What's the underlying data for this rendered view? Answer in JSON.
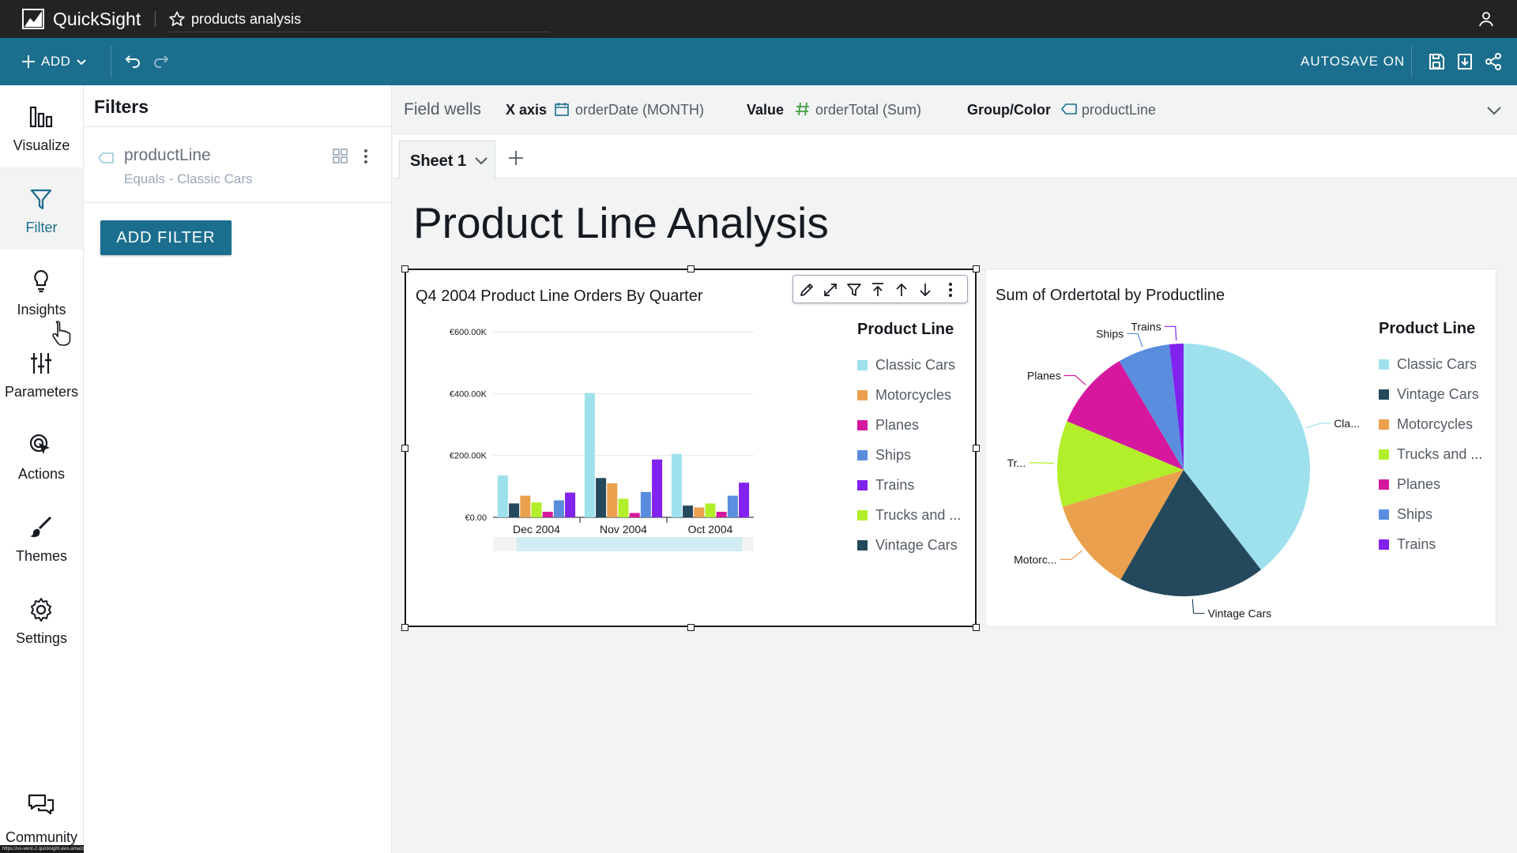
{
  "topbar": {
    "brand": "QuickSight",
    "analysis_name": "products analysis"
  },
  "toolbar": {
    "add_label": "ADD",
    "autosave": "AUTOSAVE ON"
  },
  "leftnav": {
    "items": [
      {
        "label": "Visualize",
        "icon": "bar-chart-icon"
      },
      {
        "label": "Filter",
        "icon": "filter-icon"
      },
      {
        "label": "Insights",
        "icon": "lightbulb-icon"
      },
      {
        "label": "Parameters",
        "icon": "sliders-icon"
      },
      {
        "label": "Actions",
        "icon": "pointer-icon"
      },
      {
        "label": "Themes",
        "icon": "brush-icon"
      },
      {
        "label": "Settings",
        "icon": "gear-icon"
      }
    ],
    "community": "Community",
    "status_url": "https://us-west-2.quicksight.aws.amazon.com/sn/analyses/c96b6112-5a88-4196-8c88-c7663ca49fc9#"
  },
  "filters": {
    "title": "Filters",
    "card": {
      "field": "productLine",
      "condition": "Equals - Classic Cars"
    },
    "add_label": "ADD FILTER"
  },
  "fieldwells": {
    "title": "Field wells",
    "x_label": "X axis",
    "x_value": "orderDate (MONTH)",
    "value_label": "Value",
    "value_value": "orderTotal (Sum)",
    "group_label": "Group/Color",
    "group_value": "productLine"
  },
  "sheet": {
    "tab": "Sheet 1",
    "title": "Product Line Analysis"
  },
  "colors": {
    "accent": "#1b6e8e",
    "Classic Cars": "#9ee1ec",
    "Motorcycles": "#eaa04d",
    "Vintage Cars": "#24495c",
    "Planes": "#d5189e",
    "Ships": "#5b8ddf",
    "Trains": "#8122ee",
    "Trucks and Buses": "#b2ee2a"
  },
  "bar_visual": {
    "title": "Q4 2004 Product Line Orders By Quarter",
    "legend_title": "Product Line",
    "legend": [
      "Classic Cars",
      "Motorcycles",
      "Planes",
      "Ships",
      "Trains",
      "Trucks and ...",
      "Vintage Cars"
    ]
  },
  "pie_visual": {
    "title": "Sum of Ordertotal by Productline",
    "legend_title": "Product Line",
    "legend": [
      "Classic Cars",
      "Vintage Cars",
      "Motorcycles",
      "Trucks and ...",
      "Planes",
      "Ships",
      "Trains"
    ]
  },
  "chart_data": [
    {
      "type": "bar",
      "title": "Q4 2004 Product Line Orders By Quarter",
      "categories": [
        "Dec 2004",
        "Nov 2004",
        "Oct 2004"
      ],
      "ylim": [
        0,
        600000
      ],
      "yticks": [
        "€0.00",
        "€200.00K",
        "€400.00K",
        "€600.00K"
      ],
      "legend_position": "right",
      "grid": true,
      "series": [
        {
          "name": "Classic Cars",
          "values": [
            135000,
            402000,
            205000
          ]
        },
        {
          "name": "Vintage Cars",
          "values": [
            45000,
            127000,
            38000
          ]
        },
        {
          "name": "Motorcycles",
          "values": [
            70000,
            110000,
            32000
          ]
        },
        {
          "name": "Trucks and Buses",
          "values": [
            48000,
            60000,
            45000
          ]
        },
        {
          "name": "Planes",
          "values": [
            18000,
            14000,
            18000
          ]
        },
        {
          "name": "Ships",
          "values": [
            55000,
            82000,
            70000
          ]
        },
        {
          "name": "Trains",
          "values": [
            80000,
            187000,
            112000
          ]
        }
      ]
    },
    {
      "type": "pie",
      "title": "Sum of Ordertotal by Productline",
      "legend_position": "right",
      "slices": [
        {
          "name": "Classic Cars",
          "label": "Cla...",
          "value": 39.5
        },
        {
          "name": "Vintage Cars",
          "label": "Vintage Cars",
          "value": 18.8
        },
        {
          "name": "Motorcycles",
          "label": "Motorc...",
          "value": 12.0
        },
        {
          "name": "Trucks and Buses",
          "label": "Tr...",
          "value": 11.0
        },
        {
          "name": "Planes",
          "label": "Planes",
          "value": 10.2
        },
        {
          "name": "Ships",
          "label": "Ships",
          "value": 6.7
        },
        {
          "name": "Trains",
          "label": "Trains",
          "value": 1.8
        }
      ]
    }
  ]
}
